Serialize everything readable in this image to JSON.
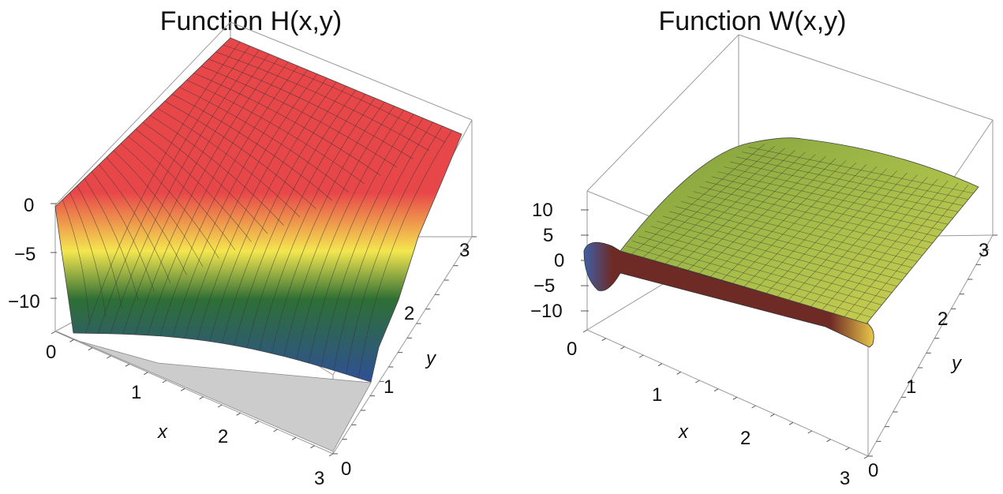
{
  "chart_data": [
    {
      "type": "surface",
      "title": "Function H(x,y)",
      "xlabel": "x",
      "ylabel": "y",
      "zlabel": "",
      "x_ticks": [
        "0",
        "1",
        "2",
        "3"
      ],
      "y_ticks": [
        "0",
        "1",
        "2",
        "3"
      ],
      "z_ticks": [
        "0",
        "−5",
        "−10"
      ],
      "xlim": [
        0,
        3
      ],
      "ylim": [
        0,
        3
      ],
      "zlim": [
        -14,
        0
      ],
      "colors": {
        "high": "#e8474a",
        "mid": "#f4e64f",
        "midlow": "#2e6f35",
        "low": "#2f4f96",
        "floor": "#cccccc"
      },
      "description_points": [
        {
          "x": 0,
          "y": 0,
          "z": -14
        },
        {
          "x": 3,
          "y": 3,
          "z": 0
        }
      ]
    },
    {
      "type": "surface",
      "title": "Function W(x,y)",
      "xlabel": "x",
      "ylabel": "y",
      "zlabel": "",
      "x_ticks": [
        "0",
        "1",
        "2",
        "3"
      ],
      "y_ticks": [
        "0",
        "1",
        "2",
        "3"
      ],
      "z_ticks": [
        "10",
        "5",
        "0",
        "−5",
        "−10"
      ],
      "xlim": [
        0,
        3
      ],
      "ylim": [
        0,
        3
      ],
      "zlim": [
        -12,
        12
      ],
      "colors": {
        "top": "#7e9f3c",
        "mid": "#d2d252",
        "edge": "#6e2a24",
        "low": "#3f5fa8"
      }
    }
  ]
}
